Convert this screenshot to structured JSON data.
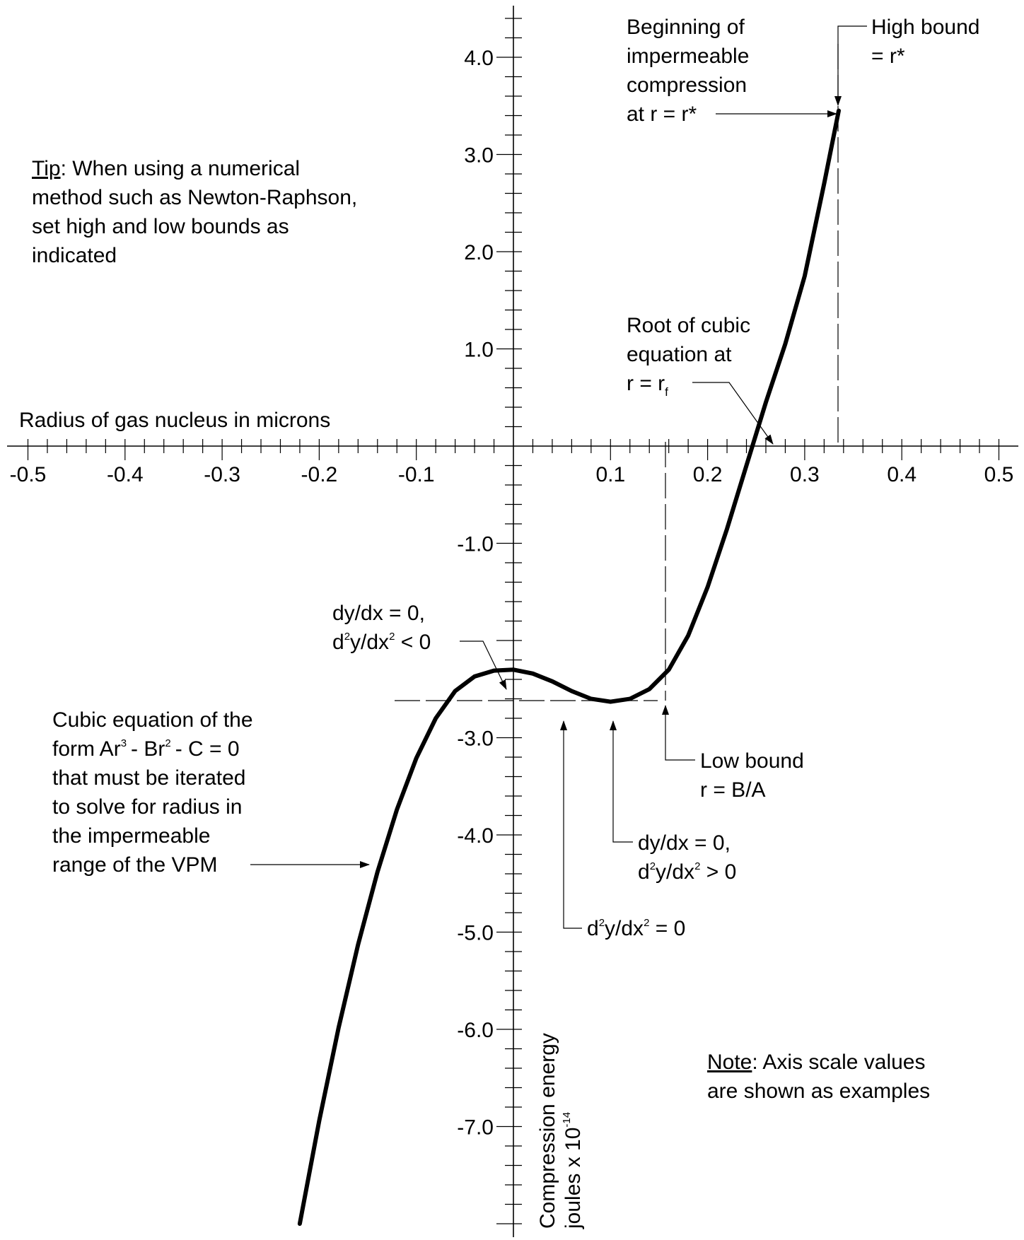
{
  "chart_data": {
    "type": "line",
    "title": "",
    "xlabel": "Radius of gas nucleus in microns",
    "ylabel_line1": "Compression energy",
    "ylabel_line2": "joules x 10",
    "ylabel_exp": "-14",
    "xlim": [
      -0.5,
      0.5
    ],
    "ylim": [
      -8.0,
      4.5
    ],
    "x_major": [
      -0.5,
      -0.4,
      -0.3,
      -0.2,
      -0.1,
      0.1,
      0.2,
      0.3,
      0.4,
      0.5
    ],
    "y_major": [
      4.0,
      3.0,
      2.0,
      1.0,
      -1.0,
      -3.0,
      -4.0,
      -5.0,
      -6.0,
      -7.0
    ],
    "x_tick_labels": [
      "-0.5",
      "-0.4",
      "-0.3",
      "-0.2",
      "-0.1",
      "0.1",
      "0.2",
      "0.3",
      "0.4",
      "0.5"
    ],
    "y_tick_labels": [
      "4.0",
      "3.0",
      "2.0",
      "1.0",
      "-1.0",
      "-3.0",
      "-4.0",
      "-5.0",
      "-6.0",
      "-7.0"
    ],
    "series": [
      {
        "x": [
          -0.22,
          -0.2,
          -0.18,
          -0.16,
          -0.14,
          -0.12,
          -0.1,
          -0.08,
          -0.06,
          -0.04,
          -0.02,
          0.0,
          0.02,
          0.04,
          0.06,
          0.08,
          0.1,
          0.12,
          0.14,
          0.16,
          0.18,
          0.2,
          0.22,
          0.24,
          0.26,
          0.28,
          0.3,
          0.32,
          0.335
        ],
        "y": [
          -8.0,
          -6.94,
          -5.98,
          -5.13,
          -4.38,
          -3.74,
          -3.21,
          -2.8,
          -2.52,
          -2.37,
          -2.31,
          -2.3,
          -2.34,
          -2.42,
          -2.52,
          -2.6,
          -2.63,
          -2.6,
          -2.5,
          -2.3,
          -1.95,
          -1.45,
          -0.85,
          -0.2,
          0.45,
          1.05,
          1.75,
          2.7,
          3.45
        ]
      }
    ],
    "grid": false,
    "legend": "none"
  },
  "annotations": {
    "tip_underlined": "Tip",
    "tip_rest": ":  When using a numerical",
    "tip_line2": "method such as Newton-Raphson,",
    "tip_line3": "set high and low bounds as",
    "tip_line4": "indicated",
    "begin_line1": "Beginning of",
    "begin_line2": "impermeable",
    "begin_line3": "compression",
    "begin_line4": "at r = r*",
    "high_line1": "High bound",
    "high_line2": "= r*",
    "root_line1": "Root of cubic",
    "root_line2": "equation at",
    "root_line3": "r = r",
    "root_sub": "f",
    "max_line1": "dy/dx = 0,",
    "max_d": "d",
    "max_sup1": "2",
    "max_mid": "y/dx",
    "max_sup2": "2",
    "max_end": " < 0",
    "cubic_line1": "Cubic equation of the",
    "cubic_form_a": "form Ar",
    "cubic_sup3": "3",
    "cubic_form_b": "- Br",
    "cubic_sup2": "2",
    "cubic_form_c": "- C = 0",
    "cubic_line3": "that must be iterated",
    "cubic_line4": "to solve for radius in",
    "cubic_line5": "the impermeable",
    "cubic_line6": "range of the VPM",
    "low_line1": "Low bound",
    "low_line2": "r = B/A",
    "min_line1": "dy/dx = 0,",
    "min_d": "d",
    "min_sup1": "2",
    "min_mid": "y/dx",
    "min_sup2": "2",
    "min_end": " > 0",
    "infl_d": "d",
    "infl_sup1": "2",
    "infl_mid": "y/dx",
    "infl_sup2": "2",
    "infl_end": " = 0",
    "note_underlined": "Note",
    "note_rest": ":  Axis scale values",
    "note_line2": "are shown as examples"
  }
}
